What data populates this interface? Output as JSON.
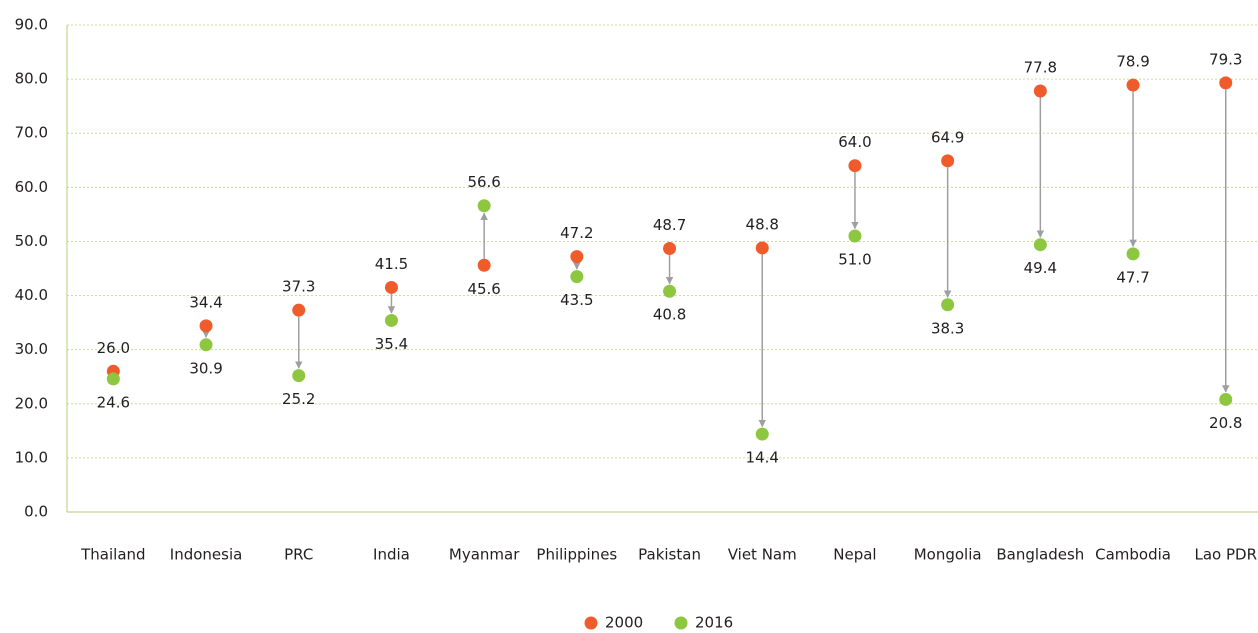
{
  "chart_data": {
    "type": "dumbbell",
    "categories": [
      "Thailand",
      "Indonesia",
      "PRC",
      "India",
      "Myanmar",
      "Philippines",
      "Pakistan",
      "Viet Nam",
      "Nepal",
      "Mongolia",
      "Bangladesh",
      "Cambodia",
      "Lao PDR"
    ],
    "series": [
      {
        "name": "2000",
        "color": "#ef5b2b",
        "values": [
          26.0,
          34.4,
          37.3,
          41.5,
          45.6,
          47.2,
          48.7,
          48.8,
          64.0,
          64.9,
          77.8,
          78.9,
          79.3
        ],
        "value_labels": [
          "26.0",
          "34.4",
          "37.3",
          "41.5",
          "45.6",
          "47.2",
          "48.7",
          "48.8",
          "64.0",
          "64.9",
          "77.8",
          "78.9",
          "79.3"
        ]
      },
      {
        "name": "2016",
        "color": "#8dc63f",
        "values": [
          24.6,
          30.9,
          25.2,
          35.4,
          56.6,
          43.5,
          40.8,
          14.4,
          51.0,
          38.3,
          49.4,
          47.7,
          20.8
        ],
        "value_labels": [
          "24.6",
          "30.9",
          "25.2",
          "35.4",
          "56.6",
          "43.5",
          "40.8",
          "14.4",
          "51.0",
          "38.3",
          "49.4",
          "47.7",
          "20.8"
        ]
      }
    ],
    "ylim": [
      0,
      90
    ],
    "yticks": [
      {
        "value": 0,
        "label": "0.0"
      },
      {
        "value": 10,
        "label": "10.0"
      },
      {
        "value": 20,
        "label": "20.0"
      },
      {
        "value": 30,
        "label": "30.0"
      },
      {
        "value": 40,
        "label": "40.0"
      },
      {
        "value": 50,
        "label": "50.0"
      },
      {
        "value": 60,
        "label": "60.0"
      },
      {
        "value": 70,
        "label": "70.0"
      },
      {
        "value": 80,
        "label": "80.0"
      },
      {
        "value": 90,
        "label": "90.0"
      }
    ],
    "grid": true,
    "legend": "bottom"
  }
}
